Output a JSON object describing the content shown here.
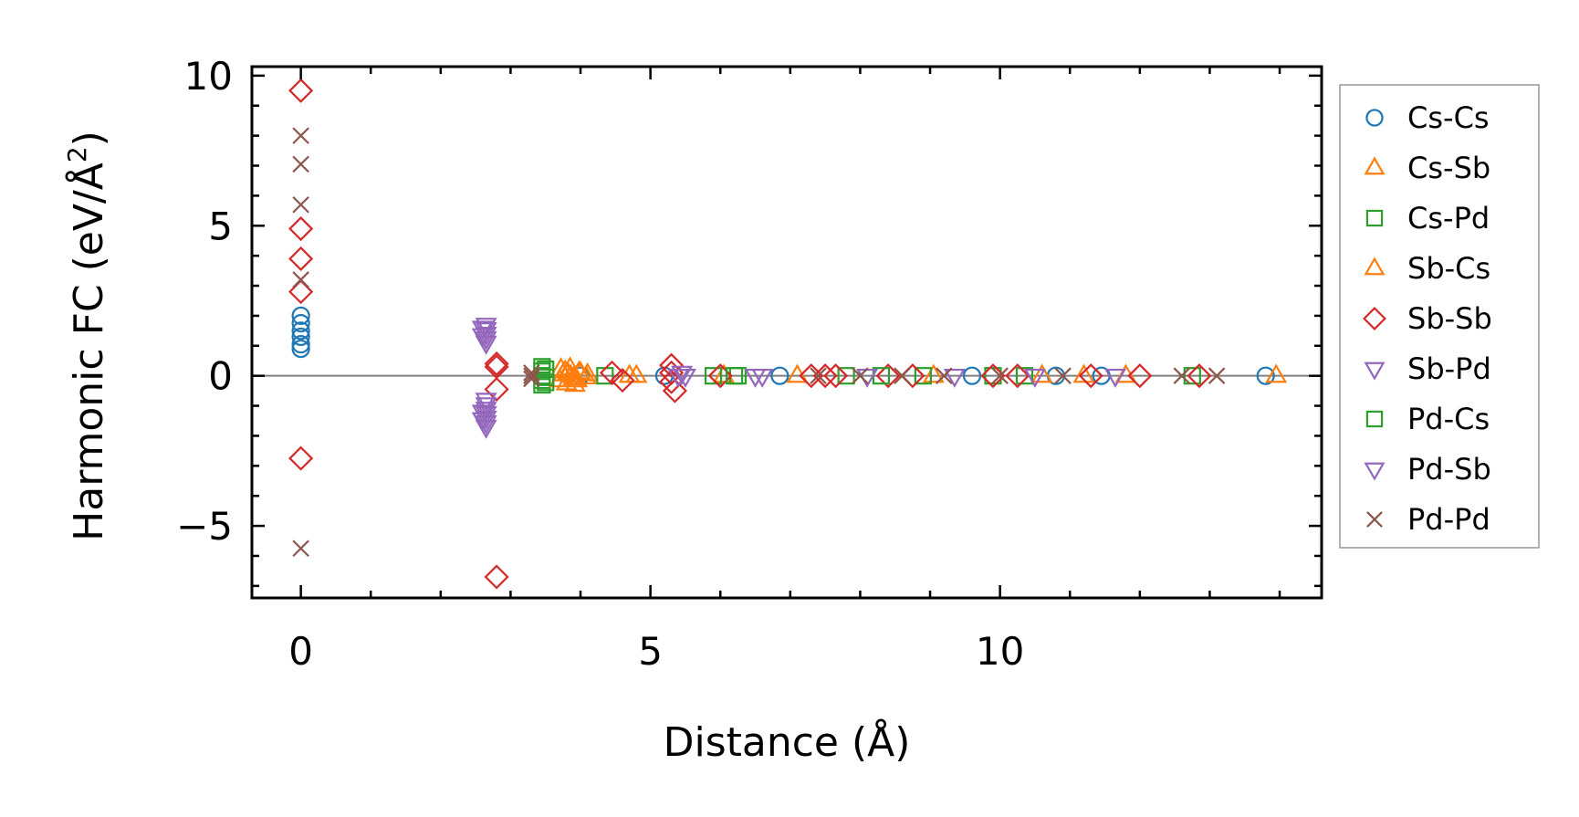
{
  "chart_data": {
    "type": "scatter",
    "xlabel": "Distance (Å)",
    "ylabel_main": "Harmonic FC (eV/Å",
    "ylabel_sup": "2",
    "ylabel_close": ")",
    "xlim": [
      -0.7,
      14.6
    ],
    "ylim": [
      -7.4,
      10.3
    ],
    "xticks": [
      0,
      5,
      10
    ],
    "xtick_labels": [
      "0",
      "5",
      "10"
    ],
    "yticks": [
      -5,
      0,
      5,
      10
    ],
    "ytick_labels": [
      "−5",
      "0",
      "5",
      "10"
    ],
    "x_minor_step": 1,
    "y_minor_step": 1,
    "grid": false,
    "zero_line": true,
    "legend_position": "outside-right",
    "series": [
      {
        "name": "Cs-Cs",
        "color": "#1f77b4",
        "marker": "circle",
        "points": [
          [
            0,
            0.9
          ],
          [
            0,
            1.05
          ],
          [
            0,
            1.3
          ],
          [
            0,
            1.5
          ],
          [
            0,
            1.75
          ],
          [
            0,
            2.0
          ],
          [
            4.0,
            0
          ],
          [
            5.2,
            0
          ],
          [
            6.85,
            0
          ],
          [
            9.6,
            0
          ],
          [
            10.8,
            0
          ],
          [
            11.45,
            0
          ],
          [
            13.8,
            0
          ]
        ]
      },
      {
        "name": "Cs-Sb",
        "color": "#ff7f0e",
        "marker": "triangle-up",
        "points": [
          [
            3.72,
            0.22
          ],
          [
            3.78,
            0.15
          ],
          [
            3.82,
            0.08
          ],
          [
            3.86,
            0.0
          ],
          [
            3.9,
            -0.08
          ],
          [
            3.95,
            -0.15
          ],
          [
            3.8,
            -0.25
          ],
          [
            4.0,
            0.1
          ],
          [
            4.08,
            -0.05
          ],
          [
            4.1,
            0.05
          ],
          [
            4.8,
            0
          ],
          [
            6.05,
            0
          ],
          [
            7.1,
            0
          ],
          [
            9.05,
            0
          ],
          [
            10.6,
            0
          ],
          [
            11.2,
            0
          ],
          [
            11.8,
            0
          ],
          [
            13.95,
            0
          ]
        ]
      },
      {
        "name": "Cs-Pd",
        "color": "#2ca02c",
        "marker": "square",
        "points": [
          [
            3.45,
            0.3
          ],
          [
            3.45,
            0.15
          ],
          [
            3.45,
            0.0
          ],
          [
            3.45,
            -0.15
          ],
          [
            3.45,
            -0.3
          ],
          [
            4.35,
            0
          ],
          [
            5.9,
            0
          ],
          [
            6.25,
            0
          ],
          [
            7.8,
            0
          ],
          [
            8.9,
            0
          ],
          [
            9.9,
            0
          ],
          [
            10.35,
            0
          ],
          [
            12.75,
            0
          ]
        ]
      },
      {
        "name": "Sb-Cs",
        "color": "#ff7f0e",
        "marker": "triangle-up",
        "points": [
          [
            3.7,
            -0.15
          ],
          [
            3.75,
            0.05
          ],
          [
            3.85,
            0.25
          ],
          [
            3.92,
            -0.3
          ],
          [
            3.98,
            0.12
          ],
          [
            4.7,
            0
          ]
        ]
      },
      {
        "name": "Sb-Sb",
        "color": "#d62728",
        "marker": "diamond",
        "points": [
          [
            0,
            9.5
          ],
          [
            0,
            4.9
          ],
          [
            0,
            3.9
          ],
          [
            0,
            2.8
          ],
          [
            0,
            -2.75
          ],
          [
            2.8,
            0.4
          ],
          [
            2.8,
            0.3
          ],
          [
            2.8,
            -0.45
          ],
          [
            2.8,
            -6.7
          ],
          [
            4.45,
            0.1
          ],
          [
            4.6,
            -0.15
          ],
          [
            5.3,
            0.35
          ],
          [
            5.3,
            0.1
          ],
          [
            5.3,
            -0.2
          ],
          [
            5.35,
            -0.5
          ],
          [
            6.0,
            0
          ],
          [
            7.3,
            0
          ],
          [
            7.5,
            0
          ],
          [
            7.65,
            0
          ],
          [
            8.4,
            0
          ],
          [
            8.75,
            0
          ],
          [
            9.9,
            0
          ],
          [
            10.25,
            0
          ],
          [
            11.3,
            0
          ],
          [
            12.0,
            0
          ],
          [
            12.85,
            0
          ]
        ]
      },
      {
        "name": "Sb-Pd",
        "color": "#9467bd",
        "marker": "triangle-down",
        "points": [
          [
            2.65,
            1.7
          ],
          [
            2.65,
            1.55
          ],
          [
            2.65,
            1.4
          ],
          [
            2.65,
            1.25
          ],
          [
            2.65,
            1.1
          ],
          [
            2.65,
            -0.8
          ],
          [
            2.65,
            -0.95
          ],
          [
            2.65,
            -1.1
          ],
          [
            2.65,
            -1.25
          ],
          [
            2.65,
            -1.4
          ],
          [
            2.65,
            -1.55
          ],
          [
            2.65,
            -1.7
          ],
          [
            5.45,
            0.1
          ],
          [
            5.5,
            0
          ],
          [
            6.5,
            0
          ],
          [
            9.35,
            0
          ],
          [
            10.5,
            0
          ],
          [
            11.65,
            0
          ]
        ]
      },
      {
        "name": "Pd-Cs",
        "color": "#2ca02c",
        "marker": "square",
        "points": [
          [
            3.5,
            0.22
          ],
          [
            3.5,
            -0.05
          ],
          [
            3.5,
            -0.22
          ],
          [
            6.2,
            0
          ],
          [
            8.3,
            0
          ]
        ]
      },
      {
        "name": "Pd-Sb",
        "color": "#9467bd",
        "marker": "triangle-down",
        "points": [
          [
            2.6,
            1.6
          ],
          [
            2.6,
            1.35
          ],
          [
            2.6,
            -1.2
          ],
          [
            2.6,
            -1.45
          ],
          [
            5.4,
            0
          ],
          [
            6.6,
            0
          ],
          [
            8.1,
            0
          ]
        ]
      },
      {
        "name": "Pd-Pd",
        "color": "#8c564b",
        "marker": "x",
        "points": [
          [
            0,
            8.0
          ],
          [
            0,
            7.05
          ],
          [
            0,
            5.7
          ],
          [
            0,
            3.2
          ],
          [
            0,
            -5.75
          ],
          [
            3.3,
            0.1
          ],
          [
            3.3,
            0
          ],
          [
            3.3,
            -0.1
          ],
          [
            7.4,
            0
          ],
          [
            8.0,
            0
          ],
          [
            8.6,
            0
          ],
          [
            9.2,
            0
          ],
          [
            10.0,
            0
          ],
          [
            10.9,
            0
          ],
          [
            12.6,
            0
          ],
          [
            13.1,
            0
          ]
        ]
      }
    ]
  }
}
